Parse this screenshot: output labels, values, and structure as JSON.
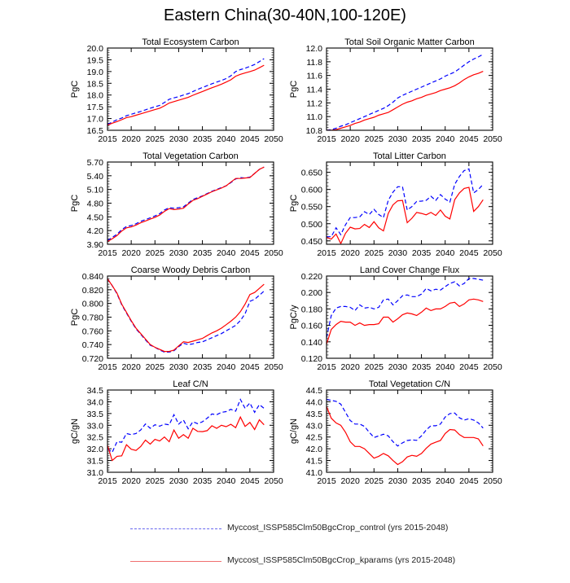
{
  "title": "Eastern China(30-40N,100-120E)",
  "legend": [
    {
      "label": "Myccost_ISSP585Clm50BgcCrop_control (yrs 2015-2048)",
      "color": "#0000ff",
      "style": "dashed"
    },
    {
      "label": "Myccost_ISSP585Clm50BgcCrop_kparams (yrs 2015-2048)",
      "color": "#ff0000",
      "style": "solid"
    }
  ],
  "chart_data": [
    {
      "type": "line",
      "title": "Total Ecosystem Carbon",
      "ylabel": "PgC",
      "xlim": [
        2015,
        2050
      ],
      "ylim": [
        16.5,
        20.0
      ],
      "xticks": [
        "2015",
        "2020",
        "2025",
        "2030",
        "2035",
        "2040",
        "2045",
        "2050"
      ],
      "yticks": [
        "16.5",
        "17.0",
        "17.5",
        "18.0",
        "18.5",
        "19.0",
        "19.5",
        "20.0"
      ],
      "x": [
        2015,
        2016,
        2017,
        2018,
        2019,
        2020,
        2021,
        2022,
        2023,
        2024,
        2025,
        2026,
        2027,
        2028,
        2029,
        2030,
        2031,
        2032,
        2033,
        2034,
        2035,
        2036,
        2037,
        2038,
        2039,
        2040,
        2041,
        2042,
        2043,
        2044,
        2045,
        2046,
        2047,
        2048
      ],
      "series": [
        {
          "name": "control",
          "values": [
            16.75,
            16.85,
            16.95,
            17.02,
            17.12,
            17.18,
            17.24,
            17.3,
            17.37,
            17.44,
            17.5,
            17.56,
            17.68,
            17.82,
            17.88,
            17.93,
            18.0,
            18.06,
            18.15,
            18.24,
            18.32,
            18.4,
            18.48,
            18.55,
            18.62,
            18.7,
            18.82,
            19.0,
            19.08,
            19.14,
            19.22,
            19.3,
            19.42,
            19.55
          ]
        },
        {
          "name": "kparams",
          "values": [
            16.72,
            16.8,
            16.87,
            16.95,
            17.04,
            17.08,
            17.14,
            17.2,
            17.26,
            17.32,
            17.38,
            17.44,
            17.54,
            17.66,
            17.72,
            17.78,
            17.84,
            17.9,
            17.99,
            18.07,
            18.15,
            18.23,
            18.31,
            18.38,
            18.46,
            18.55,
            18.65,
            18.8,
            18.88,
            18.94,
            19.0,
            19.06,
            19.16,
            19.27
          ]
        }
      ]
    },
    {
      "type": "line",
      "title": "Total Soil Organic Matter Carbon",
      "ylabel": "PgC",
      "xlim": [
        2015,
        2050
      ],
      "ylim": [
        10.8,
        12.0
      ],
      "xticks": [
        "2015",
        "2020",
        "2025",
        "2030",
        "2035",
        "2040",
        "2045",
        "2050"
      ],
      "yticks": [
        "10.8",
        "11.0",
        "11.2",
        "11.4",
        "11.6",
        "11.8",
        "12.0"
      ],
      "x": [
        2015,
        2016,
        2017,
        2018,
        2019,
        2020,
        2021,
        2022,
        2023,
        2024,
        2025,
        2026,
        2027,
        2028,
        2029,
        2030,
        2031,
        2032,
        2033,
        2034,
        2035,
        2036,
        2037,
        2038,
        2039,
        2040,
        2041,
        2042,
        2043,
        2044,
        2045,
        2046,
        2047,
        2048
      ],
      "series": [
        {
          "name": "control",
          "values": [
            10.8,
            10.81,
            10.83,
            10.86,
            10.88,
            10.91,
            10.94,
            10.97,
            11.0,
            11.03,
            11.06,
            11.09,
            11.12,
            11.16,
            11.21,
            11.27,
            11.31,
            11.34,
            11.37,
            11.4,
            11.43,
            11.46,
            11.49,
            11.52,
            11.55,
            11.59,
            11.62,
            11.65,
            11.7,
            11.75,
            11.8,
            11.84,
            11.87,
            11.91
          ]
        },
        {
          "name": "kparams",
          "values": [
            10.8,
            10.8,
            10.81,
            10.83,
            10.85,
            10.87,
            10.9,
            10.92,
            10.95,
            10.97,
            10.99,
            11.02,
            11.04,
            11.06,
            11.1,
            11.14,
            11.18,
            11.21,
            11.23,
            11.26,
            11.28,
            11.31,
            11.33,
            11.35,
            11.38,
            11.4,
            11.42,
            11.45,
            11.49,
            11.54,
            11.58,
            11.61,
            11.63,
            11.66
          ]
        }
      ]
    },
    {
      "type": "line",
      "title": "Total Vegetation Carbon",
      "ylabel": "PgC",
      "xlim": [
        2015,
        2050
      ],
      "ylim": [
        3.9,
        5.7
      ],
      "xticks": [
        "2015",
        "2020",
        "2025",
        "2030",
        "2035",
        "2040",
        "2045",
        "2050"
      ],
      "yticks": [
        "3.90",
        "4.20",
        "4.50",
        "4.80",
        "5.10",
        "5.40",
        "5.70"
      ],
      "x": [
        2015,
        2016,
        2017,
        2018,
        2019,
        2020,
        2021,
        2022,
        2023,
        2024,
        2025,
        2026,
        2027,
        2028,
        2029,
        2030,
        2031,
        2032,
        2033,
        2034,
        2035,
        2036,
        2037,
        2038,
        2039,
        2040,
        2041,
        2042,
        2043,
        2044,
        2045,
        2046,
        2047,
        2048
      ],
      "series": [
        {
          "name": "control",
          "values": [
            3.98,
            4.05,
            4.12,
            4.22,
            4.29,
            4.31,
            4.35,
            4.4,
            4.44,
            4.48,
            4.52,
            4.57,
            4.65,
            4.7,
            4.69,
            4.7,
            4.72,
            4.8,
            4.88,
            4.92,
            4.96,
            5.01,
            5.06,
            5.1,
            5.14,
            5.18,
            5.25,
            5.33,
            5.36,
            5.35,
            5.37,
            5.45,
            5.54,
            5.59
          ]
        },
        {
          "name": "kparams",
          "values": [
            3.96,
            4.02,
            4.09,
            4.19,
            4.26,
            4.28,
            4.32,
            4.37,
            4.41,
            4.45,
            4.49,
            4.54,
            4.62,
            4.68,
            4.66,
            4.67,
            4.69,
            4.78,
            4.86,
            4.9,
            4.95,
            5.0,
            5.05,
            5.09,
            5.13,
            5.18,
            5.26,
            5.34,
            5.34,
            5.35,
            5.36,
            5.45,
            5.54,
            5.59
          ]
        }
      ]
    },
    {
      "type": "line",
      "title": "Total Litter Carbon",
      "ylabel": "PgC",
      "xlim": [
        2015,
        2050
      ],
      "ylim": [
        0.44,
        0.68
      ],
      "xticks": [
        "2015",
        "2020",
        "2025",
        "2030",
        "2035",
        "2040",
        "2045",
        "2050"
      ],
      "yticks": [
        "0.450",
        "0.500",
        "0.550",
        "0.600",
        "0.650"
      ],
      "x": [
        2015,
        2016,
        2017,
        2018,
        2019,
        2020,
        2021,
        2022,
        2023,
        2024,
        2025,
        2026,
        2027,
        2028,
        2029,
        2030,
        2031,
        2032,
        2033,
        2034,
        2035,
        2036,
        2037,
        2038,
        2039,
        2040,
        2041,
        2042,
        2043,
        2044,
        2045,
        2046,
        2047,
        2048
      ],
      "series": [
        {
          "name": "control",
          "values": [
            0.462,
            0.462,
            0.488,
            0.468,
            0.497,
            0.518,
            0.518,
            0.52,
            0.535,
            0.527,
            0.542,
            0.527,
            0.518,
            0.568,
            0.592,
            0.608,
            0.608,
            0.54,
            0.55,
            0.565,
            0.566,
            0.568,
            0.58,
            0.568,
            0.585,
            0.572,
            0.563,
            0.615,
            0.638,
            0.655,
            0.66,
            0.59,
            0.6,
            0.615
          ]
        },
        {
          "name": "kparams",
          "values": [
            0.46,
            0.455,
            0.47,
            0.442,
            0.472,
            0.49,
            0.485,
            0.486,
            0.498,
            0.489,
            0.506,
            0.488,
            0.479,
            0.53,
            0.555,
            0.567,
            0.568,
            0.503,
            0.516,
            0.533,
            0.53,
            0.526,
            0.533,
            0.524,
            0.54,
            0.522,
            0.514,
            0.57,
            0.59,
            0.603,
            0.606,
            0.536,
            0.55,
            0.57
          ]
        }
      ]
    },
    {
      "type": "line",
      "title": "Coarse Woody Debris Carbon",
      "ylabel": "PgC",
      "xlim": [
        2015,
        2050
      ],
      "ylim": [
        0.72,
        0.84
      ],
      "xticks": [
        "2015",
        "2020",
        "2025",
        "2030",
        "2035",
        "2040",
        "2045",
        "2050"
      ],
      "yticks": [
        "0.720",
        "0.740",
        "0.760",
        "0.780",
        "0.800",
        "0.820",
        "0.840"
      ],
      "x": [
        2015,
        2016,
        2017,
        2018,
        2019,
        2020,
        2021,
        2022,
        2023,
        2024,
        2025,
        2026,
        2027,
        2028,
        2029,
        2030,
        2031,
        2032,
        2033,
        2034,
        2035,
        2036,
        2037,
        2038,
        2039,
        2040,
        2041,
        2042,
        2043,
        2044,
        2045,
        2046,
        2047,
        2048
      ],
      "series": [
        {
          "name": "control",
          "values": [
            0.836,
            0.826,
            0.814,
            0.798,
            0.786,
            0.774,
            0.763,
            0.755,
            0.747,
            0.739,
            0.736,
            0.732,
            0.729,
            0.729,
            0.731,
            0.737,
            0.742,
            0.74,
            0.741,
            0.743,
            0.744,
            0.747,
            0.75,
            0.753,
            0.756,
            0.76,
            0.764,
            0.768,
            0.775,
            0.785,
            0.803,
            0.806,
            0.812,
            0.818
          ]
        },
        {
          "name": "kparams",
          "values": [
            0.836,
            0.826,
            0.815,
            0.799,
            0.787,
            0.775,
            0.764,
            0.756,
            0.748,
            0.74,
            0.736,
            0.733,
            0.73,
            0.73,
            0.732,
            0.738,
            0.744,
            0.743,
            0.745,
            0.747,
            0.749,
            0.753,
            0.757,
            0.76,
            0.764,
            0.769,
            0.774,
            0.78,
            0.788,
            0.799,
            0.813,
            0.816,
            0.822,
            0.828
          ]
        }
      ]
    },
    {
      "type": "line",
      "title": "Land Cover Change Flux",
      "ylabel": "PgC/y",
      "xlim": [
        2015,
        2050
      ],
      "ylim": [
        0.12,
        0.22
      ],
      "xticks": [
        "2015",
        "2020",
        "2025",
        "2030",
        "2035",
        "2040",
        "2045",
        "2050"
      ],
      "yticks": [
        "0.120",
        "0.140",
        "0.160",
        "0.180",
        "0.200",
        "0.220"
      ],
      "x": [
        2015,
        2016,
        2017,
        2018,
        2019,
        2020,
        2021,
        2022,
        2023,
        2024,
        2025,
        2026,
        2027,
        2028,
        2029,
        2030,
        2031,
        2032,
        2033,
        2034,
        2035,
        2036,
        2037,
        2038,
        2039,
        2040,
        2041,
        2042,
        2043,
        2044,
        2045,
        2046,
        2047,
        2048
      ],
      "series": [
        {
          "name": "control",
          "values": [
            0.145,
            0.172,
            0.181,
            0.183,
            0.183,
            0.182,
            0.178,
            0.185,
            0.181,
            0.182,
            0.18,
            0.182,
            0.191,
            0.192,
            0.185,
            0.19,
            0.196,
            0.197,
            0.195,
            0.195,
            0.198,
            0.205,
            0.202,
            0.204,
            0.203,
            0.207,
            0.211,
            0.213,
            0.208,
            0.211,
            0.217,
            0.217,
            0.216,
            0.215
          ]
        },
        {
          "name": "kparams",
          "values": [
            0.137,
            0.155,
            0.161,
            0.165,
            0.164,
            0.164,
            0.16,
            0.163,
            0.16,
            0.161,
            0.161,
            0.162,
            0.17,
            0.17,
            0.164,
            0.168,
            0.173,
            0.175,
            0.174,
            0.172,
            0.176,
            0.181,
            0.178,
            0.18,
            0.18,
            0.183,
            0.187,
            0.188,
            0.183,
            0.186,
            0.191,
            0.192,
            0.191,
            0.189
          ]
        }
      ]
    },
    {
      "type": "line",
      "title": "Leaf C/N",
      "ylabel": "gC/gN",
      "xlim": [
        2015,
        2050
      ],
      "ylim": [
        31.0,
        34.5
      ],
      "xticks": [
        "2015",
        "2020",
        "2025",
        "2030",
        "2035",
        "2040",
        "2045",
        "2050"
      ],
      "yticks": [
        "31.0",
        "31.5",
        "32.0",
        "32.5",
        "33.0",
        "33.5",
        "34.0",
        "34.5"
      ],
      "x": [
        2015,
        2016,
        2017,
        2018,
        2019,
        2020,
        2021,
        2022,
        2023,
        2024,
        2025,
        2026,
        2027,
        2028,
        2029,
        2030,
        2031,
        2032,
        2033,
        2034,
        2035,
        2036,
        2037,
        2038,
        2039,
        2040,
        2041,
        2042,
        2043,
        2044,
        2045,
        2046,
        2047,
        2048
      ],
      "series": [
        {
          "name": "control",
          "values": [
            32.0,
            31.85,
            32.3,
            32.28,
            32.65,
            32.6,
            32.65,
            32.8,
            33.05,
            32.87,
            33.02,
            32.96,
            33.05,
            33.02,
            33.45,
            33.05,
            33.22,
            32.85,
            33.15,
            33.07,
            33.15,
            33.3,
            33.48,
            33.45,
            33.55,
            33.58,
            33.68,
            33.6,
            34.1,
            33.72,
            33.95,
            33.55,
            33.88,
            33.72
          ]
        },
        {
          "name": "kparams",
          "values": [
            32.15,
            31.5,
            31.68,
            31.7,
            32.17,
            31.98,
            31.93,
            32.1,
            32.37,
            32.2,
            32.4,
            32.33,
            32.5,
            32.3,
            32.8,
            32.45,
            32.6,
            32.45,
            32.87,
            32.74,
            32.73,
            32.77,
            32.98,
            32.87,
            33.0,
            32.94,
            33.04,
            32.9,
            33.35,
            32.95,
            33.12,
            32.82,
            33.23,
            33.02
          ]
        }
      ]
    },
    {
      "type": "line",
      "title": "Total Vegetation C/N",
      "ylabel": "gC/gN",
      "xlim": [
        2015,
        2050
      ],
      "ylim": [
        41.0,
        44.5
      ],
      "xticks": [
        "2015",
        "2020",
        "2025",
        "2030",
        "2035",
        "2040",
        "2045",
        "2050"
      ],
      "yticks": [
        "41.0",
        "41.5",
        "42.0",
        "42.5",
        "43.0",
        "43.5",
        "44.0",
        "44.5"
      ],
      "x": [
        2015,
        2016,
        2017,
        2018,
        2019,
        2020,
        2021,
        2022,
        2023,
        2024,
        2025,
        2026,
        2027,
        2028,
        2029,
        2030,
        2031,
        2032,
        2033,
        2034,
        2035,
        2036,
        2037,
        2038,
        2039,
        2040,
        2041,
        2042,
        2043,
        2044,
        2045,
        2046,
        2047,
        2048
      ],
      "series": [
        {
          "name": "control",
          "values": [
            44.1,
            44.06,
            44.02,
            43.9,
            43.55,
            43.2,
            43.05,
            43.05,
            42.95,
            42.7,
            42.48,
            42.55,
            42.62,
            42.55,
            42.3,
            42.12,
            42.25,
            42.35,
            42.38,
            42.36,
            42.55,
            42.8,
            42.98,
            42.98,
            43.05,
            43.35,
            43.5,
            43.52,
            43.32,
            43.22,
            43.28,
            43.22,
            43.1,
            42.88
          ]
        },
        {
          "name": "kparams",
          "values": [
            43.8,
            43.3,
            43.1,
            43.0,
            42.7,
            42.3,
            42.1,
            42.1,
            42.0,
            41.8,
            41.6,
            41.68,
            41.8,
            41.7,
            41.5,
            41.33,
            41.45,
            41.65,
            41.72,
            41.68,
            41.8,
            42.02,
            42.2,
            42.28,
            42.35,
            42.65,
            42.82,
            42.8,
            42.6,
            42.48,
            42.48,
            42.48,
            42.42,
            42.12
          ]
        }
      ]
    }
  ]
}
